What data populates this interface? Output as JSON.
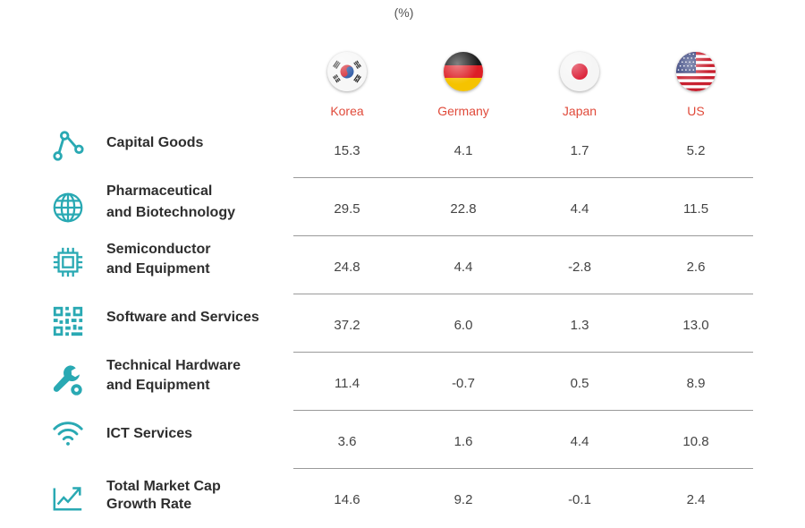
{
  "unit_label": "(%)",
  "countries": [
    {
      "name": "Korea",
      "flag_icon": "korea-flag-icon"
    },
    {
      "name": "Germany",
      "flag_icon": "germany-flag-icon"
    },
    {
      "name": "Japan",
      "flag_icon": "japan-flag-icon"
    },
    {
      "name": "US",
      "flag_icon": "us-flag-icon"
    }
  ],
  "colors": {
    "accent": "#e04a3a",
    "icon": "#29a9b3",
    "divider": "#9a9a9a"
  },
  "rows": [
    {
      "label_lines": [
        "Capital Goods"
      ],
      "icon": "nodes-icon"
    },
    {
      "label_lines": [
        "Pharmaceutical",
        "and Biotechnology"
      ],
      "icon": "globe-icon"
    },
    {
      "label_lines": [
        "Semiconductor",
        "and Equipment"
      ],
      "icon": "chip-icon"
    },
    {
      "label_lines": [
        "Software and Services"
      ],
      "icon": "qr-code-icon"
    },
    {
      "label_lines": [
        "Technical Hardware",
        "and Equipment"
      ],
      "icon": "wrench-icon"
    },
    {
      "label_lines": [
        "ICT Services"
      ],
      "icon": "wifi-icon"
    },
    {
      "label_lines": [
        "Total Market Cap",
        "Growth Rate"
      ],
      "icon": "growth-chart-icon"
    }
  ],
  "chart_data": {
    "type": "table",
    "unit": "(%)",
    "columns": [
      "Korea",
      "Germany",
      "Japan",
      "US"
    ],
    "rows": [
      {
        "category": "Capital Goods",
        "values": [
          "15.3",
          "4.1",
          "1.7",
          "5.2"
        ]
      },
      {
        "category": "Pharmaceutical and Biotechnology",
        "values": [
          "29.5",
          "22.8",
          "4.4",
          "11.5"
        ]
      },
      {
        "category": "Semiconductor and Equipment",
        "values": [
          "24.8",
          "4.4",
          "-2.8",
          "2.6"
        ]
      },
      {
        "category": "Software and Services",
        "values": [
          "37.2",
          "6.0",
          "1.3",
          "13.0"
        ]
      },
      {
        "category": "Technical Hardware and Equipment",
        "values": [
          "11.4",
          "-0.7",
          "0.5",
          "8.9"
        ]
      },
      {
        "category": "ICT Services",
        "values": [
          "3.6",
          "1.6",
          "4.4",
          "10.8"
        ]
      },
      {
        "category": "Total Market Cap Growth Rate",
        "values": [
          "14.6",
          "9.2",
          "-0.1",
          "2.4"
        ]
      }
    ]
  }
}
